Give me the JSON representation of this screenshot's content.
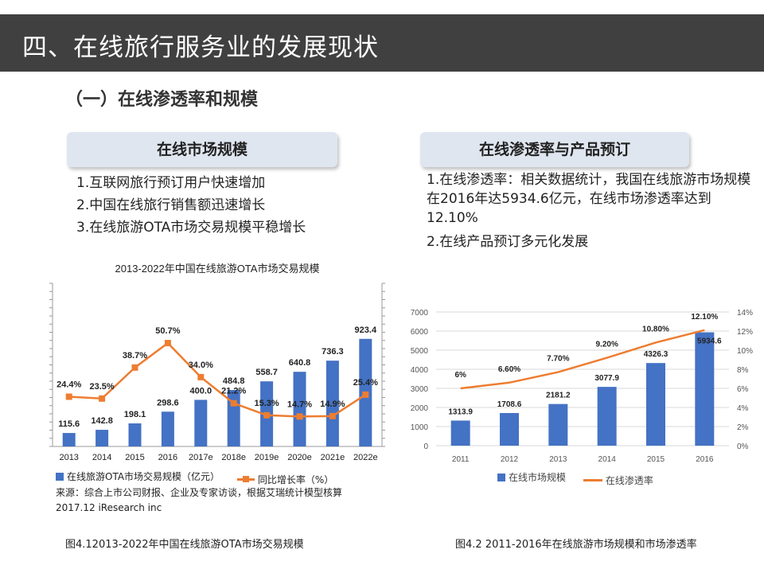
{
  "header": {
    "title": "四、在线旅行服务业的发展现状"
  },
  "section": {
    "title": "（一）在线渗透率和规模"
  },
  "left_panel": {
    "heading": "在线市场规模",
    "bullets": [
      "1.互联网旅行预订用户快速增加",
      "2.中国在线旅行销售额迅速增长",
      "3.在线旅游OTA市场交易规模平稳增长"
    ]
  },
  "right_panel": {
    "heading": "在线渗透率与产品预订",
    "bullets": [
      "1.在线渗透率：相关数据统计，我国在线旅游市场规模在2016年达5934.6亿元，在线市场渗透率达到12.10%",
      "2.在线产品预订多元化发展"
    ]
  },
  "chart_left_meta": {
    "legend_bar": "在线旅游OTA市场交易规模（亿元）",
    "legend_line": "同比增长率（%）",
    "source": "来源：综合上市公司财报、企业及专家访谈，根据艾瑞统计模型核算",
    "date": "2017.12 iResearch inc",
    "caption": "图4.12013-2022年中国在线旅游OTA市场交易规模"
  },
  "chart_right_meta": {
    "legend_bar": "在线市场规模",
    "legend_line": "在线渗透率",
    "caption": "图4.2 2011-2016年在线旅游市场规模和市场渗透率"
  },
  "chart_data": [
    {
      "type": "bar",
      "title": "2013-2022年中国在线旅游OTA市场交易规模",
      "categories": [
        "2013",
        "2014",
        "2015",
        "2016",
        "2017e",
        "2018e",
        "2019e",
        "2020e",
        "2021e",
        "2022e"
      ],
      "series": [
        {
          "name": "在线旅游OTA市场交易规模（亿元）",
          "type": "bar",
          "values": [
            115.6,
            142.8,
            198.1,
            298.6,
            400.0,
            484.8,
            558.7,
            640.8,
            736.3,
            923.4
          ],
          "labels": [
            "115.6",
            "142.8",
            "198.1",
            "298.6",
            "400.0",
            "484.8",
            "558.7",
            "640.8",
            "736.3",
            "923.4"
          ]
        },
        {
          "name": "同比增长率（%）",
          "type": "line",
          "values": [
            24.4,
            23.5,
            38.7,
            50.7,
            34.0,
            21.2,
            15.3,
            14.7,
            14.9,
            25.4
          ],
          "labels": [
            "24.4%",
            "23.5%",
            "38.7%",
            "50.7%",
            "34.0%",
            "21.2%",
            "15.3%",
            "14.7%",
            "14.9%",
            "25.4%"
          ]
        }
      ],
      "ylim": [
        0,
        1400
      ],
      "y2lim": [
        0,
        80
      ],
      "legend": "bottom",
      "grid": false,
      "colors": {
        "bar": "#4472c4",
        "line": "#ed7d31"
      }
    },
    {
      "type": "bar",
      "title": "",
      "categories": [
        "2011",
        "2012",
        "2013",
        "2014",
        "2015",
        "2016"
      ],
      "series": [
        {
          "name": "在线市场规模",
          "type": "bar",
          "values": [
            1313.9,
            1708.6,
            2181.2,
            3077.9,
            4326.3,
            5934.6
          ],
          "labels": [
            "1313.9",
            "1708.6",
            "2181.2",
            "3077.9",
            "4326.3",
            "5934.6"
          ]
        },
        {
          "name": "在线渗透率",
          "type": "line",
          "values": [
            6,
            6.6,
            7.7,
            9.2,
            10.8,
            12.1
          ],
          "labels": [
            "6%",
            "6.60%",
            "7.70%",
            "9.20%",
            "10.80%",
            "12.10%"
          ]
        }
      ],
      "ylim": [
        0,
        7000
      ],
      "yticks": [
        "0",
        "1000",
        "2000",
        "3000",
        "4000",
        "5000",
        "6000",
        "7000"
      ],
      "y2lim": [
        0,
        14
      ],
      "y2ticks": [
        "0%",
        "2%",
        "4%",
        "6%",
        "8%",
        "10%",
        "12%",
        "14%"
      ],
      "legend": "bottom",
      "grid": true,
      "colors": {
        "bar": "#4472c4",
        "line": "#ed7d31"
      }
    }
  ]
}
